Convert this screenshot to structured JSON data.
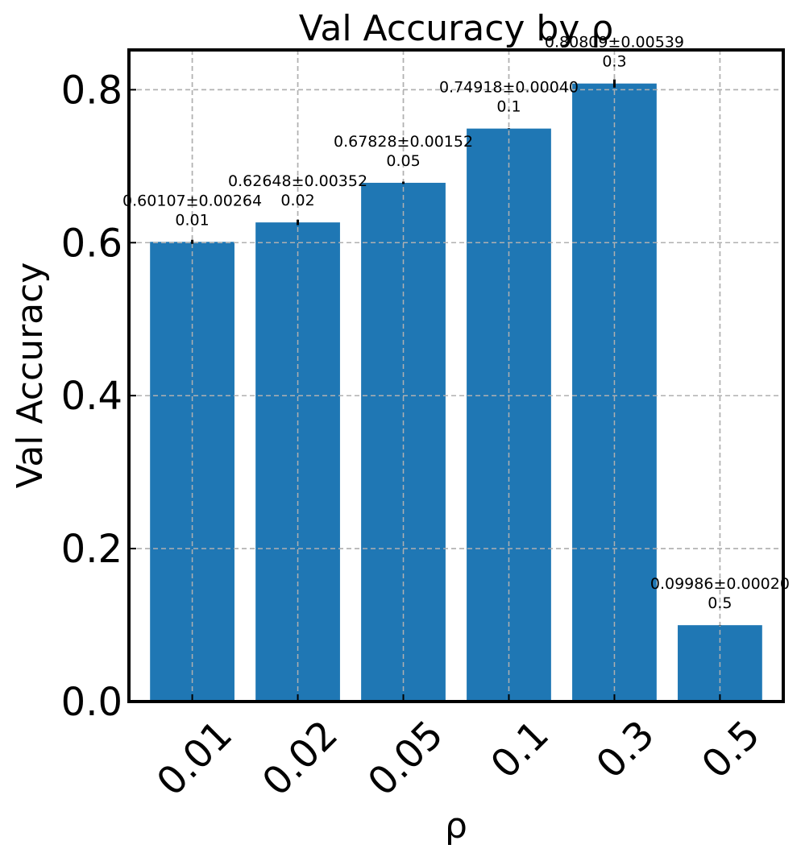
{
  "chart_data": {
    "type": "bar",
    "title": "Val Accuracy by ρ",
    "xlabel": "ρ",
    "ylabel": "Val Accuracy",
    "categories": [
      "0.01",
      "0.02",
      "0.05",
      "0.1",
      "0.3",
      "0.5"
    ],
    "values": [
      0.60107,
      0.62648,
      0.67828,
      0.74918,
      0.80809,
      0.09986
    ],
    "errors": [
      0.00264,
      0.00352,
      0.00152,
      0.0004,
      0.00539,
      0.0002
    ],
    "value_labels": [
      "0.60107±0.00264",
      "0.62648±0.00352",
      "0.67828±0.00152",
      "0.74918±0.00040",
      "0.80809±0.00539",
      "0.09986±0.00020"
    ],
    "ylim": [
      0,
      0.852
    ],
    "yticks": [
      "0.0",
      "0.2",
      "0.4",
      "0.6",
      "0.8"
    ],
    "grid": true,
    "bar_color": "#1f77b4"
  }
}
